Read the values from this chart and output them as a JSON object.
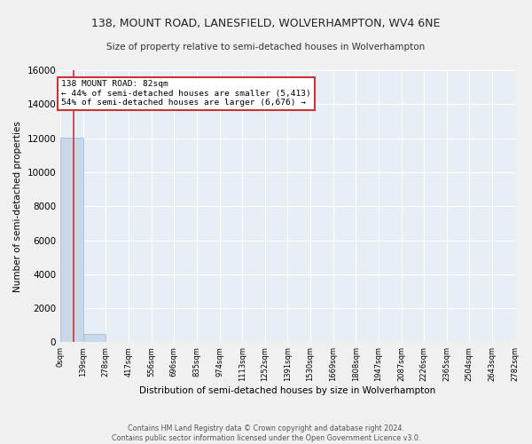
{
  "title": "138, MOUNT ROAD, LANESFIELD, WOLVERHAMPTON, WV4 6NE",
  "subtitle": "Size of property relative to semi-detached houses in Wolverhampton",
  "xlabel": "Distribution of semi-detached houses by size in Wolverhampton",
  "ylabel": "Number of semi-detached properties",
  "property_size": 82,
  "annotation_title": "138 MOUNT ROAD: 82sqm",
  "annotation_line1": "← 44% of semi-detached houses are smaller (5,413)",
  "annotation_line2": "54% of semi-detached houses are larger (6,676) →",
  "footer_line1": "Contains HM Land Registry data © Crown copyright and database right 2024.",
  "footer_line2": "Contains public sector information licensed under the Open Government Licence v3.0.",
  "bar_color": "#c8d8e8",
  "bar_edge_color": "#a0b8cc",
  "highlight_color": "#cc3333",
  "bin_edges": [
    0,
    139,
    278,
    417,
    556,
    696,
    835,
    974,
    1113,
    1252,
    1391,
    1530,
    1669,
    1808,
    1947,
    2087,
    2226,
    2365,
    2504,
    2643,
    2782
  ],
  "bin_labels": [
    "0sqm",
    "139sqm",
    "278sqm",
    "417sqm",
    "556sqm",
    "696sqm",
    "835sqm",
    "974sqm",
    "1113sqm",
    "1252sqm",
    "1391sqm",
    "1530sqm",
    "1669sqm",
    "1808sqm",
    "1947sqm",
    "2087sqm",
    "2226sqm",
    "2365sqm",
    "2504sqm",
    "2643sqm",
    "2782sqm"
  ],
  "bar_heights": [
    12050,
    490,
    0,
    0,
    0,
    0,
    0,
    0,
    0,
    0,
    0,
    0,
    0,
    0,
    0,
    0,
    0,
    0,
    0,
    0
  ],
  "ylim": [
    0,
    16000
  ],
  "yticks": [
    0,
    2000,
    4000,
    6000,
    8000,
    10000,
    12000,
    14000,
    16000
  ],
  "bg_color": "#e8eef5",
  "grid_color": "#ffffff",
  "fig_bg_color": "#f0f0f0",
  "annotation_box_color": "#ffffff",
  "annotation_box_edge_color": "#cc3333"
}
